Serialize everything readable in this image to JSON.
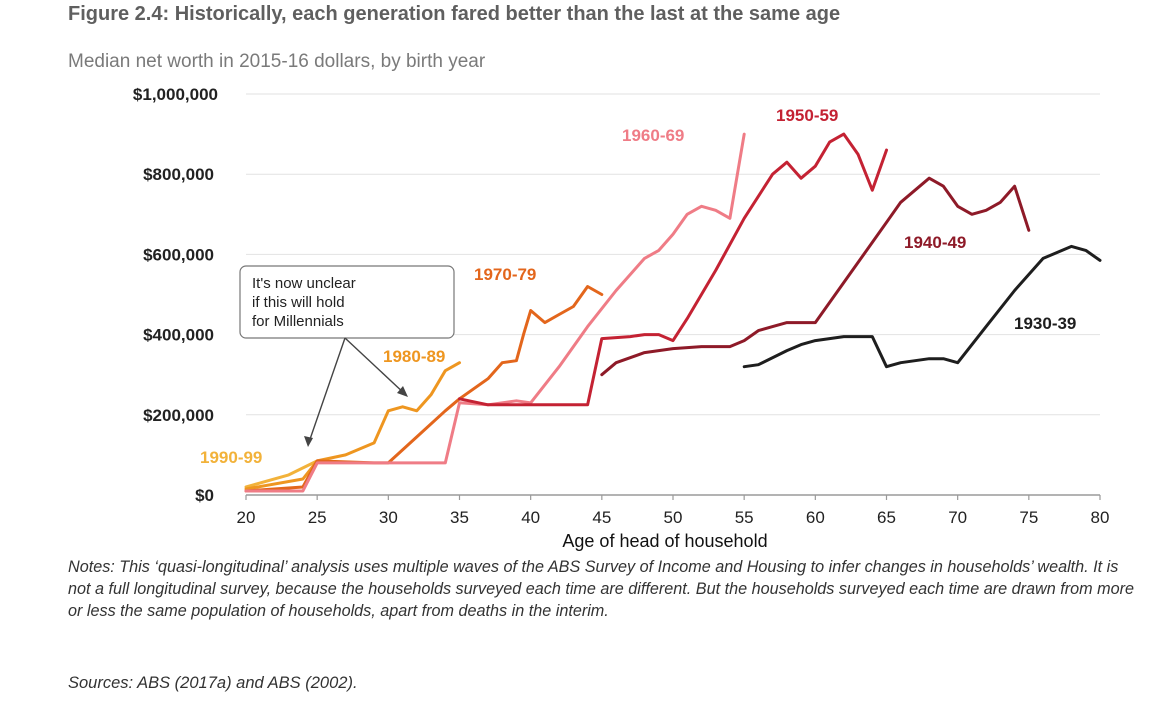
{
  "figure": {
    "title": "Figure 2.4: Historically, each generation fared better than the last at the same age",
    "subtitle": "Median net worth in 2015-16 dollars, by birth year",
    "notes": "Notes: This ‘quasi-longitudinal’ analysis uses multiple waves of the ABS Survey of Income and Housing to infer changes in households’ wealth. It is not a full longitudinal survey, because the households surveyed each time are different. But the households surveyed each time are drawn from more or less the same population of households, apart from deaths in the interim.",
    "sources": "Sources: ABS (2017a) and ABS (2002).",
    "callout": [
      "It's now unclear",
      "if this will hold",
      "for Millennials"
    ]
  },
  "chart_data": {
    "type": "line",
    "title": "Figure 2.4: Historically, each generation fared better than the last at the same age",
    "subtitle": "Median net worth in 2015-16 dollars, by birth year",
    "xlabel": "Age of head of household",
    "ylabel": "",
    "xlim": [
      20,
      80
    ],
    "ylim": [
      0,
      1000000
    ],
    "x_ticks": [
      "20",
      "25",
      "30",
      "35",
      "40",
      "45",
      "50",
      "55",
      "60",
      "65",
      "70",
      "75",
      "80"
    ],
    "y_ticks": [
      "$0",
      "$200,000",
      "$400,000",
      "$600,000",
      "$800,000",
      "$1,000,000"
    ],
    "grid": true,
    "legend": "direct labels",
    "series": [
      {
        "name": "1990-99",
        "color": "#f2b23a",
        "x": [
          20,
          23,
          25
        ],
        "y": [
          20000,
          50000,
          85000
        ]
      },
      {
        "name": "1980-89",
        "color": "#ee9620",
        "x": [
          20,
          24,
          25,
          27,
          29,
          30,
          31,
          32,
          33,
          34,
          35
        ],
        "y": [
          15000,
          40000,
          85000,
          100000,
          130000,
          210000,
          220000,
          210000,
          250000,
          310000,
          330000
        ]
      },
      {
        "name": "1970-79",
        "color": "#e3661c",
        "x": [
          20,
          24,
          25,
          29,
          30,
          32,
          34,
          35,
          37,
          38,
          39,
          39.5,
          40,
          41,
          42,
          43,
          44,
          45
        ],
        "y": [
          10000,
          20000,
          85000,
          80000,
          80000,
          145000,
          210000,
          240000,
          290000,
          330000,
          335000,
          400000,
          460000,
          430000,
          450000,
          470000,
          520000,
          500000
        ]
      },
      {
        "name": "1960-69",
        "color": "#ef7c86",
        "x": [
          20,
          24,
          25,
          26,
          30,
          34,
          35,
          37,
          39,
          40,
          42,
          44,
          46,
          48,
          49,
          50,
          51,
          52,
          53,
          54,
          55
        ],
        "y": [
          10000,
          10000,
          80000,
          80000,
          80000,
          80000,
          230000,
          225000,
          235000,
          230000,
          320000,
          420000,
          510000,
          590000,
          610000,
          650000,
          700000,
          720000,
          710000,
          690000,
          900000
        ]
      },
      {
        "name": "1950-59",
        "color": "#c42233",
        "x": [
          35,
          37,
          40,
          44,
          45,
          47,
          48,
          49,
          50,
          51,
          53,
          55,
          57,
          58,
          59,
          60,
          61,
          62,
          63,
          64,
          65
        ],
        "y": [
          240000,
          225000,
          225000,
          225000,
          390000,
          395000,
          400000,
          400000,
          385000,
          440000,
          560000,
          690000,
          800000,
          830000,
          790000,
          820000,
          880000,
          900000,
          850000,
          760000,
          860000
        ]
      },
      {
        "name": "1940-49",
        "color": "#8e1a28",
        "x": [
          45,
          46,
          48,
          50,
          52,
          54,
          55,
          56,
          57,
          58,
          59,
          60,
          62,
          64,
          66,
          68,
          69,
          70,
          71,
          72,
          73,
          74,
          75
        ],
        "y": [
          300000,
          330000,
          355000,
          365000,
          370000,
          370000,
          385000,
          410000,
          420000,
          430000,
          430000,
          430000,
          530000,
          630000,
          730000,
          790000,
          770000,
          720000,
          700000,
          710000,
          730000,
          770000,
          660000
        ]
      },
      {
        "name": "1930-39",
        "color": "#1e1e1e",
        "x": [
          55,
          56,
          58,
          59,
          60,
          62,
          64,
          65,
          66,
          68,
          69,
          70,
          72,
          74,
          76,
          78,
          79,
          80
        ],
        "y": [
          320000,
          325000,
          360000,
          375000,
          385000,
          395000,
          395000,
          320000,
          330000,
          340000,
          340000,
          330000,
          420000,
          510000,
          590000,
          620000,
          610000,
          585000
        ]
      }
    ]
  }
}
